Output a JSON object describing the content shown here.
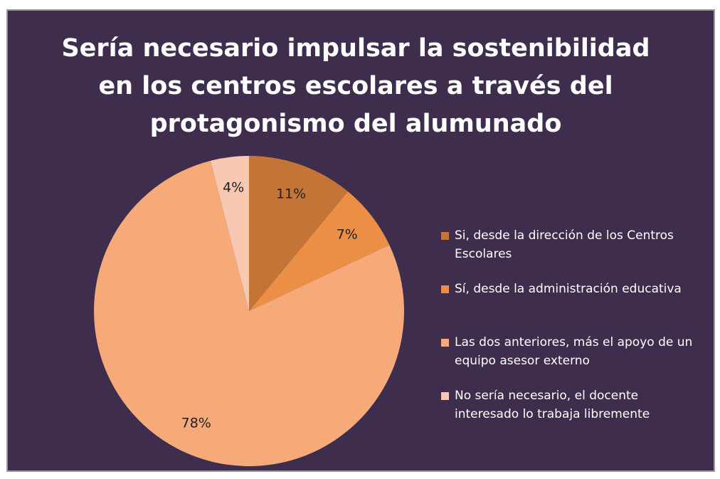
{
  "chart_data": {
    "type": "pie",
    "title": "Sería necesario impulsar la sostenibilidad en los centros escolares a través del protagonismo del alumunado",
    "categories": [
      "Si, desde la dirección de los Centros Escolares",
      "Sí, desde la administración educativa",
      "Las dos anteriores, más el apoyo de un equipo asesor externo",
      "No sería necesario, el docente interesado lo trabaja libremente"
    ],
    "values": [
      11,
      7,
      78,
      4
    ],
    "value_labels": [
      "11%",
      "7%",
      "78%",
      "4%"
    ],
    "colors": [
      "#c37436",
      "#ea8f45",
      "#f6a979",
      "#f8c8b0"
    ],
    "legend": "right"
  }
}
